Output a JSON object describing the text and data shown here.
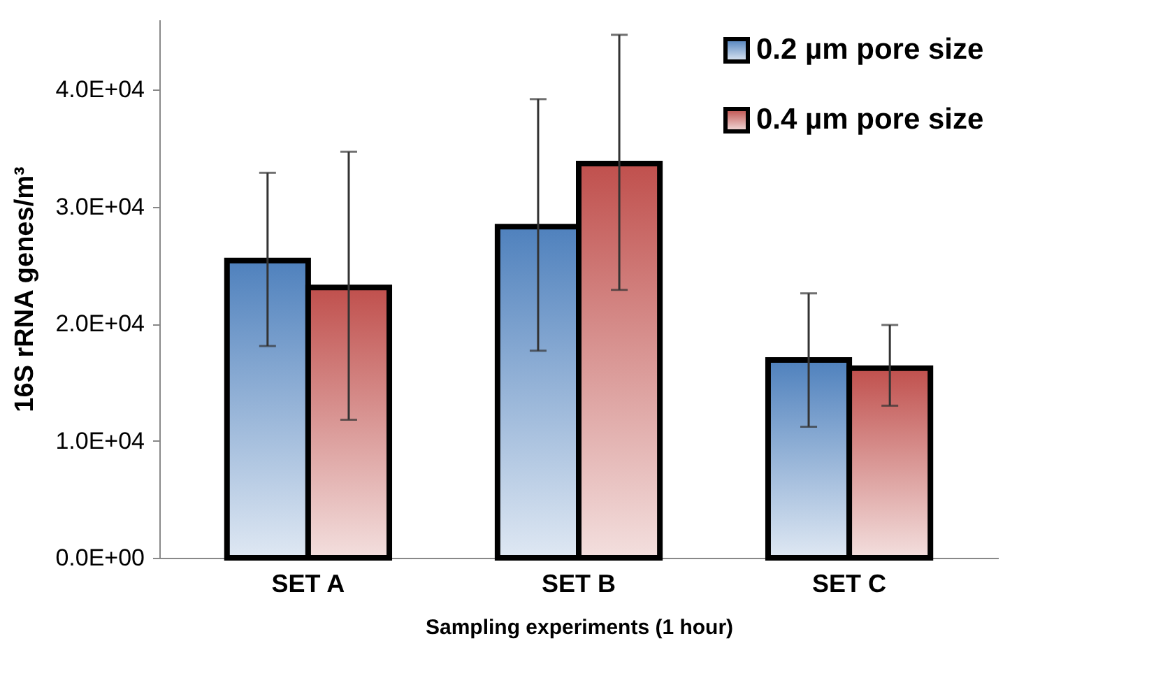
{
  "chart_data": {
    "type": "bar",
    "xlabel": "Sampling experiments  (1 hour)",
    "ylabel": "16S rRNA genes/m³",
    "categories": [
      "SET A",
      "SET B",
      "SET C"
    ],
    "series": [
      {
        "name": "0.2 µm pore size",
        "color": "#4f81bd",
        "values": [
          25400,
          28300,
          16900
        ],
        "errors": [
          [
            18100,
            32900
          ],
          [
            17700,
            39200
          ],
          [
            11200,
            22600
          ]
        ]
      },
      {
        "name": "0.4 µm pore size",
        "color": "#c0504d",
        "values": [
          23100,
          33700,
          16200
        ],
        "errors": [
          [
            11800,
            34700
          ],
          [
            22900,
            44700
          ],
          [
            13000,
            19900
          ]
        ]
      }
    ],
    "ylim": [
      0,
      46000
    ],
    "yticks": [
      {
        "value": 0,
        "label": "0.0E+00"
      },
      {
        "value": 10000,
        "label": "1.0E+04"
      },
      {
        "value": 20000,
        "label": "2.0E+04"
      },
      {
        "value": 30000,
        "label": "3.0E+04"
      },
      {
        "value": 40000,
        "label": "4.0E+04"
      }
    ],
    "grid": false,
    "legend": "top right"
  }
}
